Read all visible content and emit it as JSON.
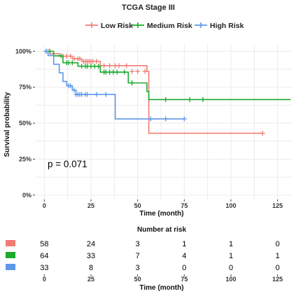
{
  "chart_data": {
    "type": "line",
    "title": "TCGA Stage III",
    "legend_position": "top",
    "xlabel": "Time (month)",
    "ylabel": "Survival probability",
    "xlim": [
      -5,
      133
    ],
    "ylim": [
      -0.03,
      1.05
    ],
    "x_ticks": [
      0,
      25,
      50,
      75,
      100,
      125
    ],
    "y_ticks": [
      {
        "value": 0,
        "label": "0%"
      },
      {
        "value": 0.25,
        "label": "25%"
      },
      {
        "value": 0.5,
        "label": "50%"
      },
      {
        "value": 0.75,
        "label": "75%"
      },
      {
        "value": 1.0,
        "label": "100%"
      }
    ],
    "grid": true,
    "annotation": "p = 0.071",
    "series": [
      {
        "name": "Low Risk",
        "color": "#f17c73",
        "steps": [
          [
            0,
            1.0
          ],
          [
            3,
            0.983
          ],
          [
            8,
            0.966
          ],
          [
            15,
            0.948
          ],
          [
            20,
            0.93
          ],
          [
            27,
            0.93
          ],
          [
            30,
            0.9
          ],
          [
            55,
            0.86
          ],
          [
            56,
            0.43
          ],
          [
            117,
            0.43
          ]
        ],
        "censored": [
          [
            2,
            1.0
          ],
          [
            10,
            0.966
          ],
          [
            12,
            0.966
          ],
          [
            14,
            0.966
          ],
          [
            16,
            0.948
          ],
          [
            18,
            0.948
          ],
          [
            19,
            0.948
          ],
          [
            21,
            0.93
          ],
          [
            22,
            0.93
          ],
          [
            23,
            0.93
          ],
          [
            24,
            0.93
          ],
          [
            25,
            0.93
          ],
          [
            26,
            0.93
          ],
          [
            28,
            0.93
          ],
          [
            32,
            0.9
          ],
          [
            35,
            0.9
          ],
          [
            38,
            0.9
          ],
          [
            40,
            0.9
          ],
          [
            44,
            0.9
          ],
          [
            47,
            0.86
          ],
          [
            50,
            0.86
          ],
          [
            54,
            0.86
          ],
          [
            117,
            0.43
          ]
        ]
      },
      {
        "name": "Medium Risk",
        "color": "#1aab2c",
        "steps": [
          [
            0,
            1.0
          ],
          [
            5,
            0.968
          ],
          [
            10,
            0.92
          ],
          [
            18,
            0.896
          ],
          [
            30,
            0.855
          ],
          [
            45,
            0.78
          ],
          [
            55,
            0.72
          ],
          [
            56,
            0.664
          ],
          [
            132,
            0.664
          ]
        ],
        "censored": [
          [
            1,
            1.0
          ],
          [
            3,
            1.0
          ],
          [
            9,
            0.968
          ],
          [
            12,
            0.92
          ],
          [
            13,
            0.92
          ],
          [
            15,
            0.92
          ],
          [
            20,
            0.896
          ],
          [
            22,
            0.896
          ],
          [
            23,
            0.896
          ],
          [
            25,
            0.896
          ],
          [
            27,
            0.896
          ],
          [
            29,
            0.896
          ],
          [
            32,
            0.855
          ],
          [
            33,
            0.855
          ],
          [
            35,
            0.855
          ],
          [
            37,
            0.855
          ],
          [
            39,
            0.855
          ],
          [
            43,
            0.855
          ],
          [
            47,
            0.78
          ],
          [
            65,
            0.664
          ],
          [
            78,
            0.664
          ],
          [
            85,
            0.664
          ]
        ]
      },
      {
        "name": "High Risk",
        "color": "#5d98ea",
        "steps": [
          [
            0,
            1.0
          ],
          [
            2,
            0.97
          ],
          [
            5,
            0.91
          ],
          [
            8,
            0.85
          ],
          [
            10,
            0.79
          ],
          [
            12,
            0.76
          ],
          [
            15,
            0.73
          ],
          [
            17,
            0.7
          ],
          [
            38,
            0.53
          ],
          [
            57,
            0.53
          ],
          [
            75,
            0.53
          ]
        ],
        "censored": [
          [
            1,
            1.0
          ],
          [
            13,
            0.76
          ],
          [
            14,
            0.76
          ],
          [
            16,
            0.73
          ],
          [
            17,
            0.7
          ],
          [
            18,
            0.7
          ],
          [
            19,
            0.7
          ],
          [
            20,
            0.7
          ],
          [
            22,
            0.7
          ],
          [
            23,
            0.7
          ],
          [
            28,
            0.7
          ],
          [
            33,
            0.7
          ],
          [
            57,
            0.53
          ],
          [
            65,
            0.53
          ],
          [
            75,
            0.53
          ]
        ]
      }
    ],
    "risk_table": {
      "title": "Number at risk",
      "xlabel": "Time (month)",
      "times": [
        0,
        25,
        50,
        75,
        100,
        125
      ],
      "rows": [
        {
          "color": "#f17c73",
          "counts": [
            "58",
            "24",
            "3",
            "1",
            "1",
            "0"
          ]
        },
        {
          "color": "#1aab2c",
          "counts": [
            "64",
            "33",
            "7",
            "4",
            "1",
            "1"
          ]
        },
        {
          "color": "#5d98ea",
          "counts": [
            "33",
            "8",
            "3",
            "0",
            "0",
            "0"
          ]
        }
      ]
    }
  }
}
